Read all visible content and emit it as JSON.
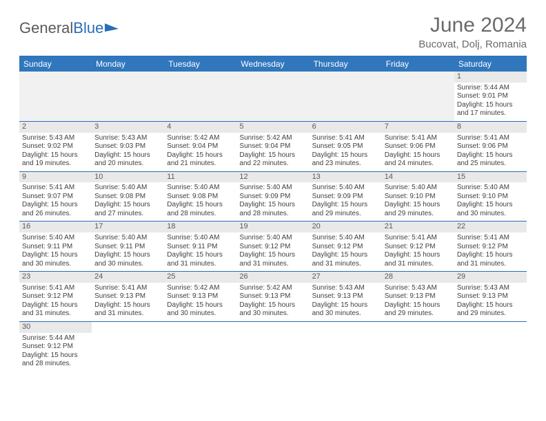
{
  "brand": {
    "part1": "General",
    "part2": "Blue"
  },
  "title": "June 2024",
  "location": "Bucovat, Dolj, Romania",
  "colors": {
    "header_bg": "#3077bd",
    "header_text": "#ffffff",
    "rule": "#2a6db5",
    "daynum_bg": "#e9e9e9",
    "text": "#404040",
    "title_text": "#6a6a6a",
    "brand_gray": "#5a5a5a",
    "brand_blue": "#2a6db5",
    "page_bg": "#ffffff"
  },
  "day_headers": [
    "Sunday",
    "Monday",
    "Tuesday",
    "Wednesday",
    "Thursday",
    "Friday",
    "Saturday"
  ],
  "weeks": [
    [
      {
        "blank": true
      },
      {
        "blank": true
      },
      {
        "blank": true
      },
      {
        "blank": true
      },
      {
        "blank": true
      },
      {
        "blank": true
      },
      {
        "n": "1",
        "sr": "Sunrise: 5:44 AM",
        "ss": "Sunset: 9:01 PM",
        "d1": "Daylight: 15 hours",
        "d2": "and 17 minutes."
      }
    ],
    [
      {
        "n": "2",
        "sr": "Sunrise: 5:43 AM",
        "ss": "Sunset: 9:02 PM",
        "d1": "Daylight: 15 hours",
        "d2": "and 19 minutes."
      },
      {
        "n": "3",
        "sr": "Sunrise: 5:43 AM",
        "ss": "Sunset: 9:03 PM",
        "d1": "Daylight: 15 hours",
        "d2": "and 20 minutes."
      },
      {
        "n": "4",
        "sr": "Sunrise: 5:42 AM",
        "ss": "Sunset: 9:04 PM",
        "d1": "Daylight: 15 hours",
        "d2": "and 21 minutes."
      },
      {
        "n": "5",
        "sr": "Sunrise: 5:42 AM",
        "ss": "Sunset: 9:04 PM",
        "d1": "Daylight: 15 hours",
        "d2": "and 22 minutes."
      },
      {
        "n": "6",
        "sr": "Sunrise: 5:41 AM",
        "ss": "Sunset: 9:05 PM",
        "d1": "Daylight: 15 hours",
        "d2": "and 23 minutes."
      },
      {
        "n": "7",
        "sr": "Sunrise: 5:41 AM",
        "ss": "Sunset: 9:06 PM",
        "d1": "Daylight: 15 hours",
        "d2": "and 24 minutes."
      },
      {
        "n": "8",
        "sr": "Sunrise: 5:41 AM",
        "ss": "Sunset: 9:06 PM",
        "d1": "Daylight: 15 hours",
        "d2": "and 25 minutes."
      }
    ],
    [
      {
        "n": "9",
        "sr": "Sunrise: 5:41 AM",
        "ss": "Sunset: 9:07 PM",
        "d1": "Daylight: 15 hours",
        "d2": "and 26 minutes."
      },
      {
        "n": "10",
        "sr": "Sunrise: 5:40 AM",
        "ss": "Sunset: 9:08 PM",
        "d1": "Daylight: 15 hours",
        "d2": "and 27 minutes."
      },
      {
        "n": "11",
        "sr": "Sunrise: 5:40 AM",
        "ss": "Sunset: 9:08 PM",
        "d1": "Daylight: 15 hours",
        "d2": "and 28 minutes."
      },
      {
        "n": "12",
        "sr": "Sunrise: 5:40 AM",
        "ss": "Sunset: 9:09 PM",
        "d1": "Daylight: 15 hours",
        "d2": "and 28 minutes."
      },
      {
        "n": "13",
        "sr": "Sunrise: 5:40 AM",
        "ss": "Sunset: 9:09 PM",
        "d1": "Daylight: 15 hours",
        "d2": "and 29 minutes."
      },
      {
        "n": "14",
        "sr": "Sunrise: 5:40 AM",
        "ss": "Sunset: 9:10 PM",
        "d1": "Daylight: 15 hours",
        "d2": "and 29 minutes."
      },
      {
        "n": "15",
        "sr": "Sunrise: 5:40 AM",
        "ss": "Sunset: 9:10 PM",
        "d1": "Daylight: 15 hours",
        "d2": "and 30 minutes."
      }
    ],
    [
      {
        "n": "16",
        "sr": "Sunrise: 5:40 AM",
        "ss": "Sunset: 9:11 PM",
        "d1": "Daylight: 15 hours",
        "d2": "and 30 minutes."
      },
      {
        "n": "17",
        "sr": "Sunrise: 5:40 AM",
        "ss": "Sunset: 9:11 PM",
        "d1": "Daylight: 15 hours",
        "d2": "and 30 minutes."
      },
      {
        "n": "18",
        "sr": "Sunrise: 5:40 AM",
        "ss": "Sunset: 9:11 PM",
        "d1": "Daylight: 15 hours",
        "d2": "and 31 minutes."
      },
      {
        "n": "19",
        "sr": "Sunrise: 5:40 AM",
        "ss": "Sunset: 9:12 PM",
        "d1": "Daylight: 15 hours",
        "d2": "and 31 minutes."
      },
      {
        "n": "20",
        "sr": "Sunrise: 5:40 AM",
        "ss": "Sunset: 9:12 PM",
        "d1": "Daylight: 15 hours",
        "d2": "and 31 minutes."
      },
      {
        "n": "21",
        "sr": "Sunrise: 5:41 AM",
        "ss": "Sunset: 9:12 PM",
        "d1": "Daylight: 15 hours",
        "d2": "and 31 minutes."
      },
      {
        "n": "22",
        "sr": "Sunrise: 5:41 AM",
        "ss": "Sunset: 9:12 PM",
        "d1": "Daylight: 15 hours",
        "d2": "and 31 minutes."
      }
    ],
    [
      {
        "n": "23",
        "sr": "Sunrise: 5:41 AM",
        "ss": "Sunset: 9:12 PM",
        "d1": "Daylight: 15 hours",
        "d2": "and 31 minutes."
      },
      {
        "n": "24",
        "sr": "Sunrise: 5:41 AM",
        "ss": "Sunset: 9:13 PM",
        "d1": "Daylight: 15 hours",
        "d2": "and 31 minutes."
      },
      {
        "n": "25",
        "sr": "Sunrise: 5:42 AM",
        "ss": "Sunset: 9:13 PM",
        "d1": "Daylight: 15 hours",
        "d2": "and 30 minutes."
      },
      {
        "n": "26",
        "sr": "Sunrise: 5:42 AM",
        "ss": "Sunset: 9:13 PM",
        "d1": "Daylight: 15 hours",
        "d2": "and 30 minutes."
      },
      {
        "n": "27",
        "sr": "Sunrise: 5:43 AM",
        "ss": "Sunset: 9:13 PM",
        "d1": "Daylight: 15 hours",
        "d2": "and 30 minutes."
      },
      {
        "n": "28",
        "sr": "Sunrise: 5:43 AM",
        "ss": "Sunset: 9:13 PM",
        "d1": "Daylight: 15 hours",
        "d2": "and 29 minutes."
      },
      {
        "n": "29",
        "sr": "Sunrise: 5:43 AM",
        "ss": "Sunset: 9:13 PM",
        "d1": "Daylight: 15 hours",
        "d2": "and 29 minutes."
      }
    ],
    [
      {
        "n": "30",
        "sr": "Sunrise: 5:44 AM",
        "ss": "Sunset: 9:12 PM",
        "d1": "Daylight: 15 hours",
        "d2": "and 28 minutes."
      },
      {
        "blank": true
      },
      {
        "blank": true
      },
      {
        "blank": true
      },
      {
        "blank": true
      },
      {
        "blank": true
      },
      {
        "blank": true
      }
    ]
  ]
}
